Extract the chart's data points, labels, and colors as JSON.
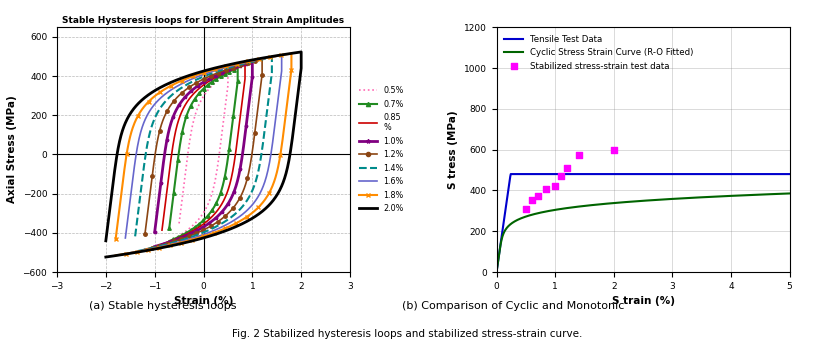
{
  "left_title": "Stable Hysteresis loops for Different Strain Amplitudes",
  "left_xlabel": "Strain (%)",
  "left_ylabel": "Axial Stress (MPa)",
  "left_xlim": [
    -3,
    3
  ],
  "left_ylim": [
    -600,
    650
  ],
  "left_xticks": [
    -3,
    -2,
    -1,
    0,
    1,
    2,
    3
  ],
  "left_yticks": [
    -600,
    -400,
    -200,
    0,
    200,
    400,
    600
  ],
  "caption_a": "(a) Stable hysteresis loops",
  "caption_b": "(b) Comparison of Cyclic and Monotonic",
  "fig_caption": "Fig. 2 Stabilized hysteresis loops and stabilized stress-strain curve.",
  "right_xlabel": "S train (%)",
  "right_ylabel": "S tress (MPa)",
  "right_xlim": [
    0,
    5
  ],
  "right_ylim": [
    0,
    1200
  ],
  "right_xticks": [
    0,
    1,
    2,
    3,
    4,
    5
  ],
  "right_yticks": [
    0,
    200,
    400,
    600,
    800,
    1000,
    1200
  ],
  "loops": [
    {
      "amp": 0.5,
      "color": "#FF69B4",
      "style": ":",
      "marker": null,
      "label": "0.5%",
      "lw": 1.2
    },
    {
      "amp": 0.7,
      "color": "#228B22",
      "style": "-",
      "marker": "^",
      "label": "0.7%",
      "lw": 1.5
    },
    {
      "amp": 0.85,
      "color": "#CC0000",
      "style": "-",
      "marker": null,
      "label": "0.85\n%",
      "lw": 1.2
    },
    {
      "amp": 1.0,
      "color": "#800080",
      "style": "-",
      "marker": "*",
      "label": "1.0%",
      "lw": 2.0
    },
    {
      "amp": 1.2,
      "color": "#8B4513",
      "style": "-",
      "marker": "o",
      "label": "1.2%",
      "lw": 1.2
    },
    {
      "amp": 1.4,
      "color": "#008B8B",
      "style": "--",
      "marker": null,
      "label": "1.4%",
      "lw": 1.5
    },
    {
      "amp": 1.6,
      "color": "#6666CC",
      "style": "-",
      "marker": null,
      "label": "1.6%",
      "lw": 1.2
    },
    {
      "amp": 1.8,
      "color": "#FF8C00",
      "style": "-",
      "marker": "x",
      "label": "1.8%",
      "lw": 1.5
    },
    {
      "amp": 2.0,
      "color": "#000000",
      "style": "-",
      "marker": null,
      "label": "2.0%",
      "lw": 2.0
    }
  ],
  "tensile_blue": "#0000CD",
  "cyclic_green": "#006400",
  "scatter_magenta": "#FF00FF",
  "scatter_x": [
    0.5,
    0.6,
    0.7,
    0.85,
    1.0,
    1.1,
    1.2,
    1.4,
    2.0
  ],
  "scatter_y": [
    310,
    355,
    375,
    405,
    420,
    470,
    510,
    575,
    600
  ]
}
